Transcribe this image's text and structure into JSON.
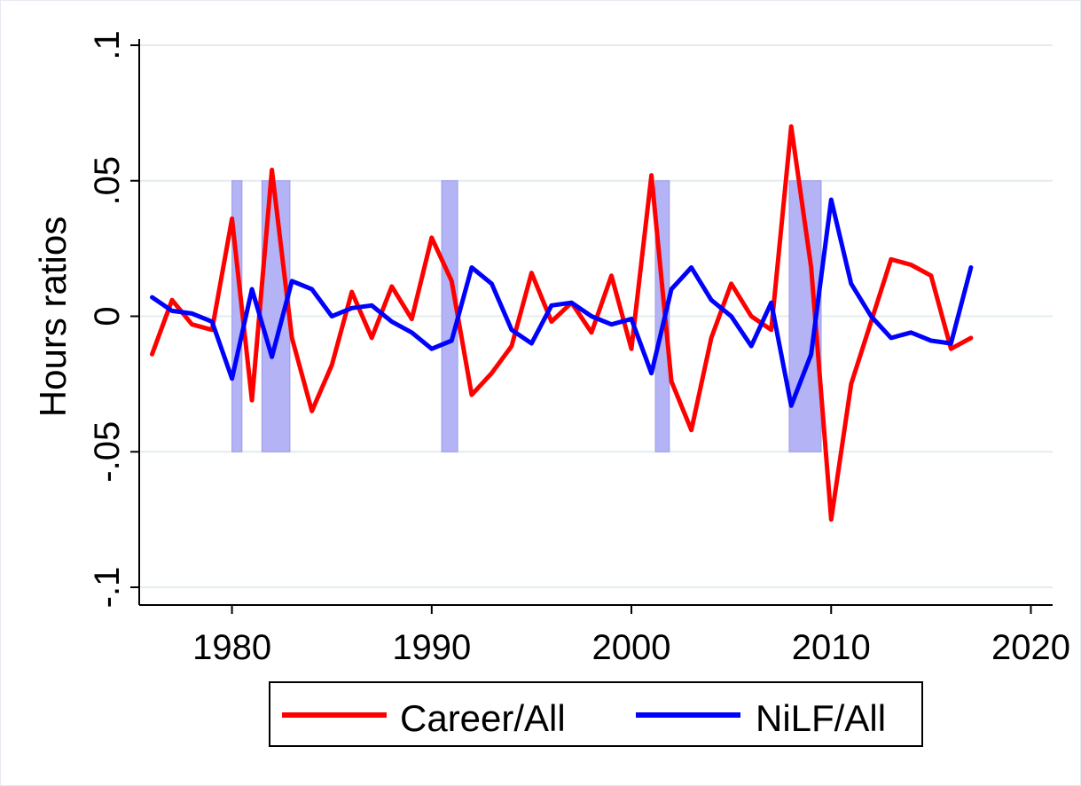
{
  "chart_data": {
    "type": "line",
    "title": "",
    "xlabel": "",
    "ylabel": "Hours ratios",
    "xlim": [
      1976,
      2021
    ],
    "ylim": [
      -0.1,
      0.1
    ],
    "x_ticks": [
      1980,
      1990,
      2000,
      2010,
      2020
    ],
    "x_tick_labels": [
      "1980",
      "1990",
      "2000",
      "2010",
      "2020"
    ],
    "y_ticks": [
      -0.1,
      -0.05,
      0,
      0.05,
      0.1
    ],
    "y_tick_labels": [
      "-.1",
      "-.05",
      "0",
      ".05",
      ".1"
    ],
    "grid": true,
    "legend_position": "bottom",
    "recession_band_range": [
      -0.05,
      0.05
    ],
    "recessions": [
      [
        1980.0,
        1980.5
      ],
      [
        1981.5,
        1982.9
      ],
      [
        1990.5,
        1991.3
      ],
      [
        2001.2,
        2001.9
      ],
      [
        2007.9,
        2009.5
      ]
    ],
    "series": [
      {
        "name": "Career/All",
        "color": "#ff0000",
        "x": [
          1976,
          1977,
          1978,
          1979,
          1980,
          1981,
          1982,
          1983,
          1984,
          1985,
          1986,
          1987,
          1988,
          1989,
          1990,
          1991,
          1992,
          1993,
          1994,
          1995,
          1996,
          1997,
          1998,
          1999,
          2000,
          2001,
          2002,
          2003,
          2004,
          2005,
          2006,
          2007,
          2008,
          2009,
          2010,
          2011,
          2012,
          2013,
          2014,
          2015,
          2016,
          2017
        ],
        "values": [
          -0.014,
          0.006,
          -0.003,
          -0.005,
          0.036,
          -0.031,
          0.054,
          -0.008,
          -0.035,
          -0.018,
          0.009,
          -0.008,
          0.011,
          -0.001,
          0.029,
          0.013,
          -0.029,
          -0.021,
          -0.011,
          0.016,
          -0.002,
          0.005,
          -0.006,
          0.015,
          -0.012,
          0.052,
          -0.024,
          -0.042,
          -0.008,
          0.012,
          0.0,
          -0.005,
          0.07,
          0.018,
          -0.075,
          -0.025,
          -0.002,
          0.021,
          0.019,
          0.015,
          -0.012,
          -0.008
        ]
      },
      {
        "name": "NiLF/All",
        "color": "#0000ff",
        "x": [
          1976,
          1977,
          1978,
          1979,
          1980,
          1981,
          1982,
          1983,
          1984,
          1985,
          1986,
          1987,
          1988,
          1989,
          1990,
          1991,
          1992,
          1993,
          1994,
          1995,
          1996,
          1997,
          1998,
          1999,
          2000,
          2001,
          2002,
          2003,
          2004,
          2005,
          2006,
          2007,
          2008,
          2009,
          2010,
          2011,
          2012,
          2013,
          2014,
          2015,
          2016,
          2017
        ],
        "values": [
          0.007,
          0.002,
          0.001,
          -0.002,
          -0.023,
          0.01,
          -0.015,
          0.013,
          0.01,
          0.0,
          0.003,
          0.004,
          -0.002,
          -0.006,
          -0.012,
          -0.009,
          0.018,
          0.012,
          -0.005,
          -0.01,
          0.004,
          0.005,
          0.0,
          -0.003,
          -0.001,
          -0.021,
          0.01,
          0.018,
          0.006,
          0.0,
          -0.011,
          0.005,
          -0.033,
          -0.014,
          0.043,
          0.012,
          0.0,
          -0.008,
          -0.006,
          -0.009,
          -0.01,
          0.018
        ]
      }
    ]
  }
}
